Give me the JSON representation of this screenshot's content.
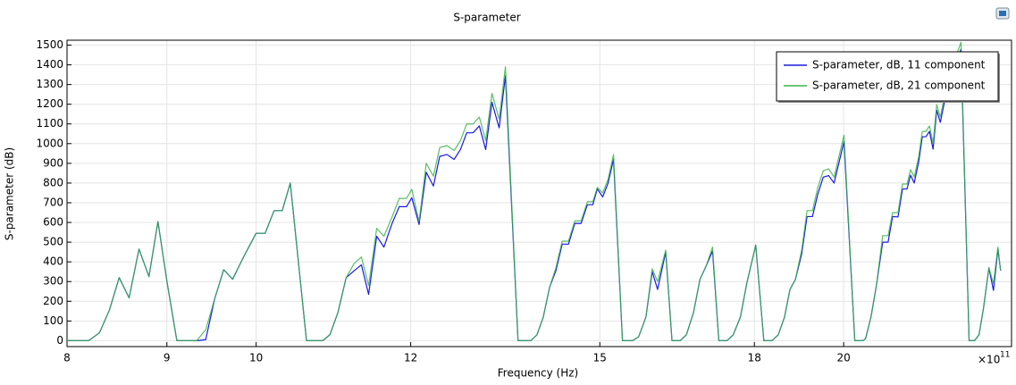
{
  "chart_data": {
    "type": "line",
    "title": "S-parameter",
    "xlabel": "Frequency (Hz)",
    "ylabel": "S-parameter (dB)",
    "x_multiplier": {
      "base": "×10",
      "exponent": "11"
    },
    "xscale": "log",
    "grid": true,
    "legend": "upper right",
    "xlim": [
      800000000000.0,
      2438000000000.0
    ],
    "ylim": [
      -30,
      1525
    ],
    "xticks": [
      {
        "value": 800000000000.0,
        "label": "8"
      },
      {
        "value": 900000000000.0,
        "label": "9"
      },
      {
        "value": 1000000000000.0,
        "label": "10"
      },
      {
        "value": 1200000000000.0,
        "label": "12"
      },
      {
        "value": 1500000000000.0,
        "label": "15"
      },
      {
        "value": 1800000000000.0,
        "label": "18"
      },
      {
        "value": 2000000000000.0,
        "label": "20"
      }
    ],
    "yticks": [
      0,
      100,
      200,
      300,
      400,
      500,
      600,
      700,
      800,
      900,
      1000,
      1100,
      1200,
      1300,
      1400,
      1500
    ],
    "x": [
      800000000000.0,
      820700000000.0,
      831200000000.0,
      841000000000.0,
      850800000000.0,
      860800000000.0,
      870900000000.0,
      881200000000.0,
      890600000000.0,
      900100000000.0,
      910700000000.0,
      921400000000.0,
      932200000000.0,
      942200000000.0,
      952200000000.0,
      962400000000.0,
      972700000000.0,
      984100000000.0,
      999900000000.0,
      1010600000000.0,
      1021400000000.0,
      1031200000000.0,
      1041100000000.0,
      1061200000000.0,
      1073700000000.0,
      1081700000000.0,
      1090900000000.0,
      1101400000000.0,
      1112000000000.0,
      1122600000000.0,
      1132200000000.0,
      1141900000000.0,
      1152800000000.0,
      1162700000000.0,
      1173900000000.0,
      1183900000000.0,
      1194000000000.0,
      1201600000000.0,
      1211900000000.0,
      1222200000000.0,
      1232600000000.0,
      1241800000000.0,
      1252400000000.0,
      1263100000000.0,
      1272500000000.0,
      1282000000000.0,
      1291600000000.0,
      1301200000000.0,
      1311000000000.0,
      1320700000000.0,
      1332000000000.0,
      1341900000000.0,
      1362000000000.0,
      1382500000000.0,
      1392800000000.0,
      1403200000000.0,
      1413600000000.0,
      1424200000000.0,
      1434800000000.0,
      1445500000000.0,
      1456300000000.0,
      1467200000000.0,
      1478100000000.0,
      1487600000000.0,
      1495500000000.0,
      1505100000000.0,
      1514700000000.0,
      1524400000000.0,
      1540600000000.0,
      1558800000000.0,
      1570400000000.0,
      1583800000000.0,
      1595600000000.0,
      1605800000000.0,
      1621200000000.0,
      1633300000000.0,
      1649000000000.0,
      1661300000000.0,
      1675500000000.0,
      1688000000000.0,
      1700600000000.0,
      1713300000000.0,
      1726100000000.0,
      1742700000000.0,
      1755700000000.0,
      1770600000000.0,
      1783900000000.0,
      1802900000000.0,
      1820200000000.0,
      1837700000000.0,
      1851400000000.0,
      1865200000000.0,
      1877200000000.0,
      1889200000000.0,
      1903300000000.0,
      1915400000000.0,
      1927700000000.0,
      1940000000000.0,
      1952400000000.0,
      1964900000000.0,
      1977500000000.0,
      2000700000000.0,
      2026400000000.0,
      2045800000000.0,
      2052300000000.0,
      2065500000000.0,
      2078700000000.0,
      2094200000000.0,
      2107600000000.0,
      2118800000000.0,
      2132400000000.0,
      2143700000000.0,
      2155100000000.0,
      2164300000000.0,
      2173500000000.0,
      2185100000000.0,
      2194400000000.0,
      2203700000000.0,
      2213100000000.0,
      2222500000000.0,
      2232000000000.0,
      2241500000000.0,
      2253400000000.0,
      2272600000000.0,
      2284700000000.0,
      2296900000000.0,
      2319000000000.0,
      2333800000000.0,
      2346300000000.0,
      2358700000000.0,
      2373800000000.0,
      2386500000000.0,
      2399200000000.0,
      2406800000000.0
    ],
    "series": [
      {
        "name": "S-parameter, dB, 11 component",
        "color": "#1a1ae0",
        "values": [
          0,
          0,
          40,
          155,
          320,
          217,
          465,
          325,
          605,
          300,
          0,
          0,
          0,
          5,
          212,
          360,
          312,
          415,
          545,
          545,
          660,
          660,
          800,
          0,
          0,
          0,
          30,
          145,
          320,
          355,
          385,
          235,
          530,
          475,
          595,
          680,
          680,
          725,
          590,
          855,
          785,
          935,
          945,
          920,
          970,
          1055,
          1055,
          1090,
          970,
          1210,
          1080,
          1345,
          0,
          0,
          30,
          120,
          270,
          355,
          490,
          490,
          595,
          595,
          690,
          690,
          770,
          730,
          800,
          920,
          0,
          0,
          20,
          120,
          350,
          260,
          450,
          0,
          0,
          30,
          145,
          310,
          380,
          455,
          0,
          0,
          30,
          120,
          290,
          485,
          0,
          0,
          30,
          120,
          260,
          310,
          440,
          630,
          630,
          745,
          830,
          838,
          800,
          1010,
          0,
          0,
          10,
          120,
          280,
          500,
          500,
          630,
          628,
          770,
          770,
          840,
          800,
          908,
          1035,
          1035,
          1062,
          972,
          1170,
          1108,
          1220,
          1320,
          1420,
          1480,
          0,
          0,
          30,
          165,
          370,
          255,
          465,
          355
        ]
      },
      {
        "name": "S-parameter, dB, 21 component",
        "color": "#3cb44b",
        "values": [
          0,
          0,
          40,
          155,
          320,
          217,
          465,
          325,
          605,
          300,
          0,
          0,
          0,
          55,
          212,
          360,
          312,
          415,
          545,
          545,
          660,
          660,
          800,
          0,
          0,
          0,
          30,
          145,
          320,
          392,
          425,
          280,
          570,
          530,
          628,
          722,
          722,
          768,
          605,
          900,
          835,
          980,
          990,
          965,
          1015,
          1100,
          1100,
          1135,
          1015,
          1255,
          1125,
          1390,
          0,
          0,
          30,
          120,
          270,
          370,
          505,
          505,
          608,
          608,
          705,
          705,
          778,
          750,
          820,
          945,
          0,
          0,
          20,
          120,
          365,
          300,
          460,
          0,
          0,
          30,
          145,
          310,
          380,
          475,
          0,
          0,
          30,
          120,
          290,
          485,
          0,
          0,
          30,
          120,
          260,
          310,
          460,
          660,
          660,
          778,
          862,
          872,
          830,
          1043,
          0,
          0,
          10,
          120,
          280,
          533,
          533,
          650,
          650,
          795,
          795,
          868,
          830,
          935,
          1062,
          1062,
          1090,
          1000,
          1198,
          1135,
          1248,
          1345,
          1450,
          1515,
          0,
          0,
          30,
          165,
          370,
          290,
          475,
          355
        ]
      }
    ]
  }
}
